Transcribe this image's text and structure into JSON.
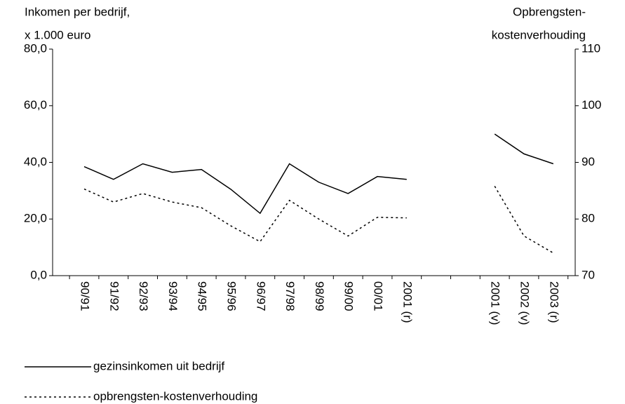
{
  "chart_data": {
    "type": "line",
    "y_label": [
      "Inkomen per bedrijf,",
      "x 1.000 euro"
    ],
    "y2_label": [
      "Opbrengsten-",
      "kostenverhouding"
    ],
    "categories": [
      "90/91",
      "91/92",
      "92/93",
      "93/94",
      "94/95",
      "95/96",
      "96/97",
      "97/98",
      "98/99",
      "99/00",
      "00/01",
      "2001 (r)",
      null,
      null,
      "2001 (v)",
      "2002 (v)",
      "2003 (r)"
    ],
    "series": [
      {
        "name": "gezinsinkomen uit bedrijf",
        "color": "#000000",
        "style": "solid",
        "values": [
          38.5,
          34,
          39.5,
          36.5,
          37.5,
          30.5,
          22,
          39.5,
          33,
          29,
          35,
          34,
          null,
          null,
          50,
          43,
          39.5
        ]
      },
      {
        "name": "opbrengsten-kostenverhouding",
        "color": "#000000",
        "style": "dotted",
        "axis": "y2",
        "values": [
          85.3,
          83,
          84.5,
          83,
          82,
          78.8,
          76,
          83.3,
          80,
          77,
          80.3,
          80.2,
          null,
          null,
          85.8,
          77,
          74
        ]
      }
    ],
    "ylim": [
      0,
      80
    ],
    "yticks": [
      {
        "value": 0,
        "label": "0,0"
      },
      {
        "value": 20,
        "label": "20,0"
      },
      {
        "value": 40,
        "label": "40,0"
      },
      {
        "value": 60,
        "label": "60,0"
      },
      {
        "value": 80,
        "label": "80,0"
      }
    ],
    "y2lim": [
      70,
      110
    ],
    "y2ticks": [
      70,
      80,
      90,
      100,
      110
    ],
    "grid": false,
    "legend": "bottom"
  }
}
